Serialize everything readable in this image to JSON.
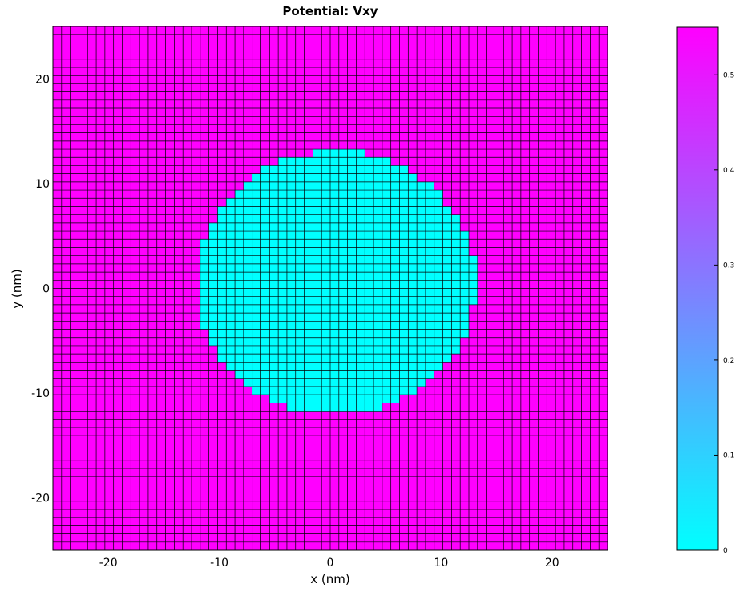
{
  "chart_data": {
    "type": "heatmap",
    "title": "Potential: Vxy",
    "xlabel": "x (nm)",
    "ylabel": "y (nm)",
    "xlim": [
      -25,
      25
    ],
    "ylim": [
      -25,
      25
    ],
    "x_ticks": [
      -20,
      -10,
      0,
      10,
      20
    ],
    "y_ticks": [
      -20,
      -10,
      0,
      10,
      20
    ],
    "grid": "on",
    "grid_divisions": 64,
    "region_shape": "disk",
    "region_center": [
      0.5,
      0.5
    ],
    "region_radius": 12.6,
    "inside_value": 0,
    "outside_value": 0.55,
    "colorbar": {
      "range": [
        0,
        0.55
      ],
      "ticks": [
        0,
        0.1,
        0.2,
        0.3,
        0.4,
        0.5
      ],
      "tick_labels": [
        "0",
        "0.1",
        "0.2",
        "0.3",
        "0.4",
        "0.5"
      ],
      "colormap": "cool",
      "low_color": "#00ffff",
      "high_color": "#ff00ff"
    }
  }
}
